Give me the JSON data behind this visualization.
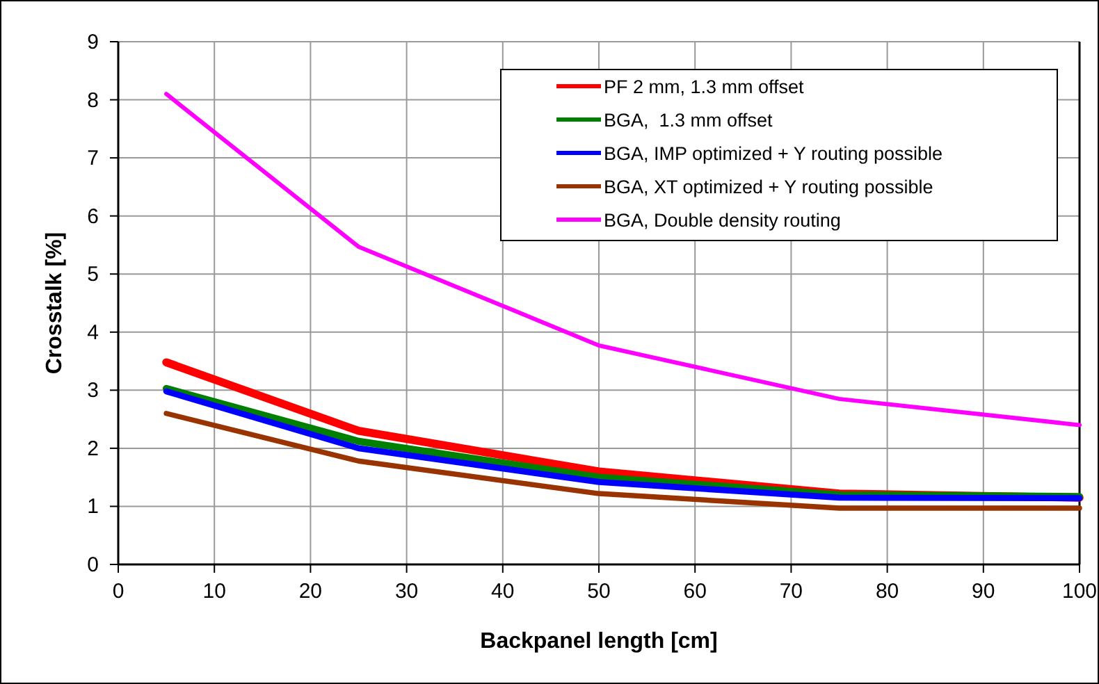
{
  "chart_data": {
    "type": "line",
    "xlabel": "Backpanel length [cm]",
    "ylabel": "Crosstalk [%]",
    "x": [
      5,
      25,
      50,
      75,
      100
    ],
    "series": [
      {
        "name": "PF 2 mm, 1.3 mm offset",
        "color": "#ff0000",
        "values": [
          3.48,
          2.3,
          1.6,
          1.22,
          1.15
        ]
      },
      {
        "name": "BGA,  1.3 mm offset",
        "color": "#008000",
        "values": [
          3.03,
          2.12,
          1.5,
          1.2,
          1.17
        ]
      },
      {
        "name": "BGA, IMP optimized + Y routing possible",
        "color": "#0000ff",
        "values": [
          2.98,
          2.0,
          1.42,
          1.15,
          1.14
        ]
      },
      {
        "name": "BGA, XT optimized + Y routing possible",
        "color": "#993300",
        "values": [
          2.6,
          1.78,
          1.22,
          0.97,
          0.97
        ]
      },
      {
        "name": "BGA, Double density routing",
        "color": "#ff00ff",
        "values": [
          8.1,
          5.47,
          3.77,
          2.85,
          2.4
        ]
      }
    ],
    "xlim": [
      0,
      100
    ],
    "xticks": [
      0,
      10,
      20,
      30,
      40,
      50,
      60,
      70,
      80,
      90,
      100
    ],
    "ylim": [
      0,
      9
    ],
    "yticks": [
      0,
      1,
      2,
      3,
      4,
      5,
      6,
      7,
      8,
      9
    ],
    "grid": true,
    "legend": "top right",
    "marker": "none",
    "line_style": "solid"
  }
}
